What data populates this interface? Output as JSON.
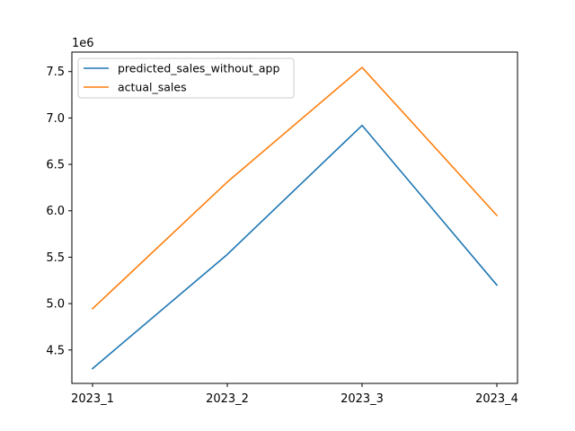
{
  "chart_data": {
    "type": "line",
    "categories": [
      "2023_1",
      "2023_2",
      "2023_3",
      "2023_4"
    ],
    "series": [
      {
        "name": "predicted_sales_without_app",
        "color": "#1f77b4",
        "values": [
          4300000,
          5530000,
          6920000,
          5200000
        ]
      },
      {
        "name": "actual_sales",
        "color": "#ff7f0e",
        "values": [
          4945000,
          6310000,
          7545000,
          5950000
        ]
      }
    ],
    "yticks": [
      4.5,
      5.0,
      5.5,
      6.0,
      6.5,
      7.0,
      7.5
    ],
    "ytick_labels": [
      "4.5",
      "5.0",
      "5.5",
      "6.0",
      "6.5",
      "7.0",
      "7.5"
    ],
    "y_scale_factor": 1000000,
    "y_offset_text": "1e6",
    "ylim": [
      4.14,
      7.71
    ],
    "legend": "top-left",
    "grid": false
  }
}
